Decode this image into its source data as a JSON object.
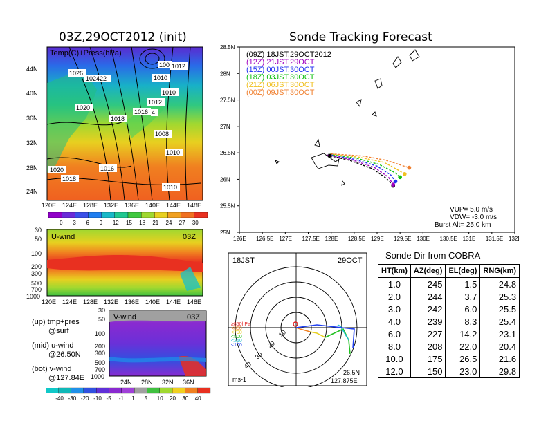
{
  "left_title": "03Z,29OCT2012 (init)",
  "right_title": "Sonde Tracking Forecast",
  "map_panel": {
    "label": "Temp(C)+Press(hPa)",
    "lat_ticks": [
      "44N",
      "40N",
      "36N",
      "32N",
      "28N",
      "24N"
    ],
    "lon_ticks": [
      "120E",
      "124E",
      "128E",
      "132E",
      "136E",
      "140E",
      "144E",
      "148E"
    ],
    "pressure_labels": [
      "1026",
      "102422",
      "100",
      "1012",
      "1010",
      "1010",
      "1020",
      "1012",
      "1018",
      "1016",
      "4",
      "1008",
      "1010",
      "1016",
      "1020",
      "1018",
      "1010"
    ],
    "colorbar_ticks": [
      "0",
      "3",
      "6",
      "9",
      "12",
      "15",
      "18",
      "21",
      "24",
      "27",
      "30"
    ],
    "colorbar_colors": [
      "#9000c8",
      "#6a2bd8",
      "#3a50e8",
      "#1f7ef0",
      "#18b8c8",
      "#20c890",
      "#40c840",
      "#a0d830",
      "#e8d020",
      "#f0a020",
      "#f07020",
      "#e83020"
    ]
  },
  "uwind_panel": {
    "label": "U-wind",
    "time": "03Z",
    "y_ticks": [
      "30",
      "50",
      "100",
      "200",
      "300",
      "500",
      "700",
      "1000"
    ],
    "x_ticks": [
      "120E",
      "124E",
      "128E",
      "132E",
      "136E",
      "140E",
      "144E",
      "148E"
    ]
  },
  "vwind_panel": {
    "label": "V-wind",
    "time": "03Z",
    "y_ticks": [
      "30",
      "50",
      "100",
      "200",
      "300",
      "500",
      "700",
      "1000"
    ],
    "x_ticks": [
      "24N",
      "28N",
      "32N",
      "36N"
    ]
  },
  "legend_text": {
    "line1": "(up) tmp+pres",
    "line2": "@surf",
    "line3": "(mid) u-wind",
    "line4": "@26.50N",
    "line5": "(bot) v-wind",
    "line6": "@127.84E"
  },
  "wind_colorbar_ticks": [
    "-40",
    "-30",
    "-20",
    "-10",
    "-5",
    "-1",
    "1",
    "5",
    "10",
    "20",
    "30",
    "40"
  ],
  "wind_colorbar_colors": [
    "#10b8b8",
    "#2090e8",
    "#3050e0",
    "#6030d8",
    "#8a2ad0",
    "#a040d8",
    "#a0a0a0",
    "#40c040",
    "#a0d830",
    "#f0d020",
    "#f08020",
    "#e83020"
  ],
  "chart_data": {
    "type": "line",
    "title": "Sonde Tracking Forecast",
    "xlim": [
      126,
      132
    ],
    "ylim": [
      25,
      28.5
    ],
    "x_ticks": [
      "126E",
      "126.5E",
      "127E",
      "127.5E",
      "128E",
      "128.5E",
      "129E",
      "129.5E",
      "130E",
      "130.5E",
      "131E",
      "131.5E",
      "132E"
    ],
    "y_ticks": [
      "25N",
      "25.5N",
      "26N",
      "26.5N",
      "27N",
      "27.5N",
      "28N",
      "28.5N"
    ],
    "series": [
      {
        "name": "(09Z)  18JST,29OCT2012",
        "color": "#000000",
        "x": [
          127.9,
          128.4,
          128.9,
          129.2,
          129.35
        ],
        "y": [
          26.46,
          26.36,
          26.2,
          26.02,
          25.88
        ]
      },
      {
        "name": "(12Z)  21JST,29OCT",
        "color": "#a000c0",
        "x": [
          127.92,
          128.45,
          128.95,
          129.25,
          129.35
        ],
        "y": [
          26.46,
          26.37,
          26.22,
          26.04,
          25.9
        ]
      },
      {
        "name": "(15Z)  00JST,30OCT",
        "color": "#2030f0",
        "x": [
          127.94,
          128.5,
          129.0,
          129.3,
          129.4
        ],
        "y": [
          26.47,
          26.38,
          26.25,
          26.08,
          25.96
        ]
      },
      {
        "name": "(18Z)  03JST,30OCT",
        "color": "#10c010",
        "x": [
          127.96,
          128.55,
          129.05,
          129.4,
          129.5
        ],
        "y": [
          26.47,
          26.4,
          26.28,
          26.12,
          26.04
        ]
      },
      {
        "name": "(21Z)  06JST,30OCT",
        "color": "#f0c020",
        "x": [
          127.98,
          128.6,
          129.15,
          129.45,
          129.6
        ],
        "y": [
          26.48,
          26.42,
          26.32,
          26.18,
          26.1
        ]
      },
      {
        "name": "(00Z)  09JST,30OCT",
        "color": "#f08030",
        "x": [
          128.0,
          128.7,
          129.2,
          129.55,
          129.7
        ],
        "y": [
          26.48,
          26.44,
          26.36,
          26.26,
          26.22
        ]
      }
    ],
    "params": {
      "vup": "VUP=  5.0  m/s",
      "vdw": "VDW= -3.0  m/s",
      "burst": "Burst Alt=  25.0  km"
    }
  },
  "polar_panel": {
    "time_label": "18JST",
    "date_label": "29OCT",
    "range_labels": [
      "10",
      "20",
      "30",
      "40"
    ],
    "layer_legend": [
      {
        "text": "≥850hPa",
        "color": "#e02020"
      },
      {
        "text": "<850",
        "color": "#f08020"
      },
      {
        "text": "<700",
        "color": "#e8d020"
      },
      {
        "text": "<500",
        "color": "#20c020"
      },
      {
        "text": "<250",
        "color": "#20c0d0"
      },
      {
        "text": "<100",
        "color": "#2040f0"
      }
    ],
    "units": "ms-1",
    "loc_lat": "26.5N",
    "loc_lon": "127.875E"
  },
  "cobra_table": {
    "title": "Sonde Dir from COBRA",
    "headers": [
      "HT(km)",
      "AZ(deg)",
      "EL(deg)",
      "RNG(km)"
    ],
    "rows": [
      [
        "1.0",
        "245",
        "1.5",
        "24.8"
      ],
      [
        "2.0",
        "244",
        "3.7",
        "25.3"
      ],
      [
        "3.0",
        "242",
        "6.0",
        "25.5"
      ],
      [
        "4.0",
        "239",
        "8.3",
        "25.4"
      ],
      [
        "6.0",
        "227",
        "14.2",
        "23.1"
      ],
      [
        "8.0",
        "208",
        "22.0",
        "20.4"
      ],
      [
        "10.0",
        "175",
        "26.5",
        "21.6"
      ],
      [
        "12.0",
        "150",
        "23.0",
        "29.8"
      ]
    ]
  }
}
